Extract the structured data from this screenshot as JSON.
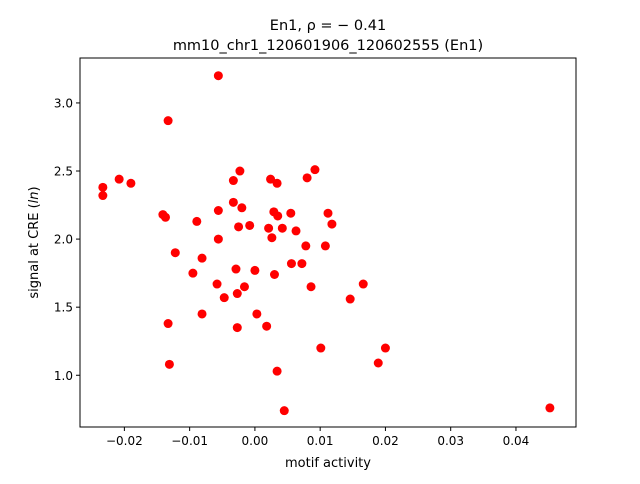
{
  "chart_data": {
    "type": "scatter",
    "title_line1": "En1, ρ = − 0.41",
    "title_line2": "mm10_chr1_120601906_120602555 (En1)",
    "xlabel": "motif activity",
    "ylabel_prefix": "signal at CRE (",
    "ylabel_ital": "ln",
    "ylabel_suffix": ")",
    "xlim": [
      -0.0268,
      0.0492
    ],
    "ylim": [
      0.62,
      3.33
    ],
    "xticks": [
      {
        "v": -0.02,
        "label": "−0.02"
      },
      {
        "v": -0.01,
        "label": "−0.01"
      },
      {
        "v": 0.0,
        "label": "0.00"
      },
      {
        "v": 0.01,
        "label": "0.01"
      },
      {
        "v": 0.02,
        "label": "0.02"
      },
      {
        "v": 0.03,
        "label": "0.03"
      },
      {
        "v": 0.04,
        "label": "0.04"
      }
    ],
    "yticks": [
      {
        "v": 1.0,
        "label": "1.0"
      },
      {
        "v": 1.5,
        "label": "1.5"
      },
      {
        "v": 2.0,
        "label": "2.0"
      },
      {
        "v": 2.5,
        "label": "2.5"
      },
      {
        "v": 3.0,
        "label": "3.0"
      }
    ],
    "marker_color": "#ff0000",
    "points": [
      {
        "x": -0.0056,
        "y": 3.2
      },
      {
        "x": -0.0133,
        "y": 2.87
      },
      {
        "x": -0.0233,
        "y": 2.38
      },
      {
        "x": -0.0233,
        "y": 2.32
      },
      {
        "x": -0.0208,
        "y": 2.44
      },
      {
        "x": -0.019,
        "y": 2.41
      },
      {
        "x": -0.0141,
        "y": 2.18
      },
      {
        "x": -0.0137,
        "y": 2.16
      },
      {
        "x": -0.0089,
        "y": 2.13
      },
      {
        "x": -0.0122,
        "y": 1.9
      },
      {
        "x": -0.0095,
        "y": 1.75
      },
      {
        "x": -0.0081,
        "y": 1.86
      },
      {
        "x": -0.0081,
        "y": 1.45
      },
      {
        "x": -0.0133,
        "y": 1.38
      },
      {
        "x": -0.0131,
        "y": 1.08
      },
      {
        "x": -0.0056,
        "y": 2.21
      },
      {
        "x": -0.0056,
        "y": 2.0
      },
      {
        "x": -0.0033,
        "y": 2.43
      },
      {
        "x": -0.0023,
        "y": 2.5
      },
      {
        "x": -0.0033,
        "y": 2.27
      },
      {
        "x": -0.002,
        "y": 2.23
      },
      {
        "x": -0.0025,
        "y": 2.09
      },
      {
        "x": -0.0008,
        "y": 2.1
      },
      {
        "x": -0.0058,
        "y": 1.67
      },
      {
        "x": -0.0047,
        "y": 1.57
      },
      {
        "x": -0.0029,
        "y": 1.78
      },
      {
        "x": -0.0027,
        "y": 1.6
      },
      {
        "x": -0.0016,
        "y": 1.65
      },
      {
        "x": -0.0027,
        "y": 1.35
      },
      {
        "x": 0.0,
        "y": 1.77
      },
      {
        "x": 0.0003,
        "y": 1.45
      },
      {
        "x": 0.0024,
        "y": 2.44
      },
      {
        "x": 0.0034,
        "y": 2.41
      },
      {
        "x": 0.0029,
        "y": 2.2
      },
      {
        "x": 0.0035,
        "y": 2.17
      },
      {
        "x": 0.0021,
        "y": 2.08
      },
      {
        "x": 0.0026,
        "y": 2.01
      },
      {
        "x": 0.0042,
        "y": 2.08
      },
      {
        "x": 0.003,
        "y": 1.74
      },
      {
        "x": 0.0018,
        "y": 1.36
      },
      {
        "x": 0.0034,
        "y": 1.03
      },
      {
        "x": 0.0045,
        "y": 0.74
      },
      {
        "x": 0.0055,
        "y": 2.19
      },
      {
        "x": 0.0063,
        "y": 2.06
      },
      {
        "x": 0.0056,
        "y": 1.82
      },
      {
        "x": 0.0072,
        "y": 1.82
      },
      {
        "x": 0.0078,
        "y": 1.95
      },
      {
        "x": 0.008,
        "y": 2.45
      },
      {
        "x": 0.0092,
        "y": 2.51
      },
      {
        "x": 0.0086,
        "y": 1.65
      },
      {
        "x": 0.0112,
        "y": 2.19
      },
      {
        "x": 0.0118,
        "y": 2.11
      },
      {
        "x": 0.0108,
        "y": 1.95
      },
      {
        "x": 0.0101,
        "y": 1.2
      },
      {
        "x": 0.0146,
        "y": 1.56
      },
      {
        "x": 0.0166,
        "y": 1.67
      },
      {
        "x": 0.0189,
        "y": 1.09
      },
      {
        "x": 0.02,
        "y": 1.2
      },
      {
        "x": 0.0452,
        "y": 0.76
      }
    ]
  }
}
